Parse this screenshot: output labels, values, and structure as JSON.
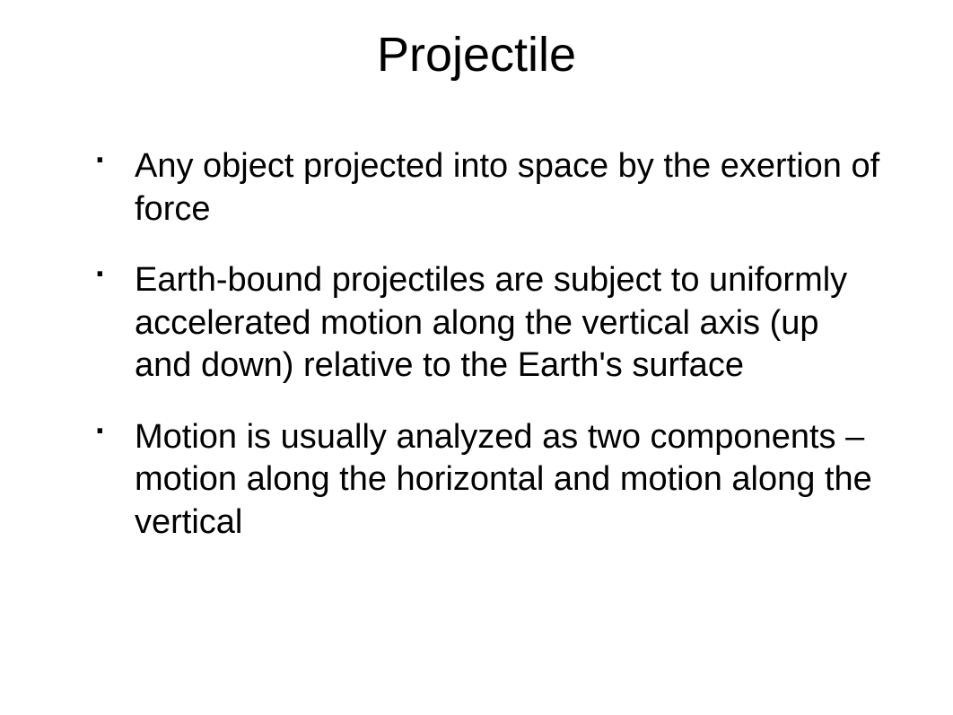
{
  "slide": {
    "title": "Projectile",
    "bullets": [
      "Any object projected into space by the exertion of force",
      "Earth-bound projectiles are subject to uniformly accelerated motion along the vertical axis (up and down) relative to the Earth's surface",
      "Motion is usually analyzed as two components – motion along the horizontal and motion along the vertical"
    ],
    "background_color": "#ffffff",
    "text_color": "#000000",
    "title_fontsize": 54,
    "body_fontsize": 38
  }
}
